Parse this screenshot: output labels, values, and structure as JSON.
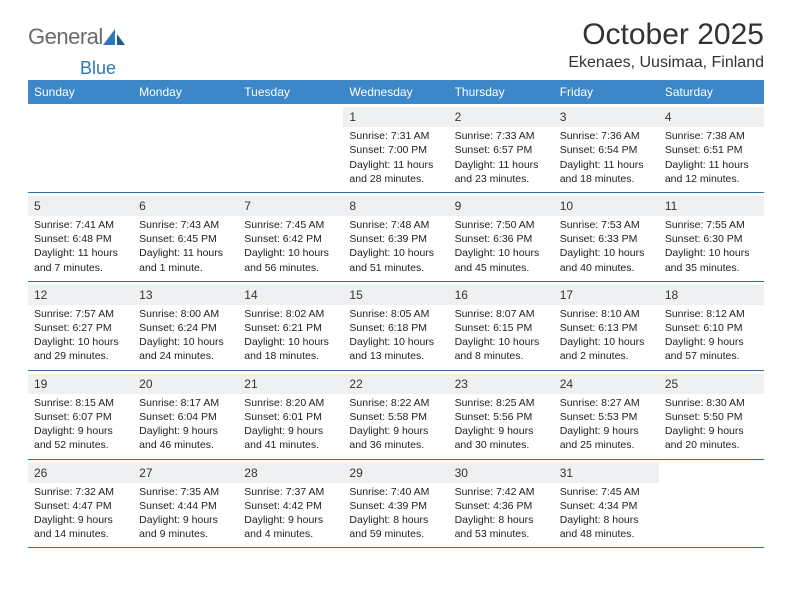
{
  "brand": {
    "name_part1": "General",
    "name_part2": "Blue",
    "accent_color": "#2f77bc"
  },
  "title": "October 2025",
  "location": "Ekenaes, Uusimaa, Finland",
  "colors": {
    "header_bg": "#3b87c8",
    "header_text": "#ffffff",
    "daynum_bg": "#eef0f2",
    "week_border": "#2f6fa8",
    "text": "#222222"
  },
  "weekday_labels": [
    "Sunday",
    "Monday",
    "Tuesday",
    "Wednesday",
    "Thursday",
    "Friday",
    "Saturday"
  ],
  "first_weekday_index": 3,
  "days": [
    {
      "n": "1",
      "sunrise": "7:31 AM",
      "sunset": "7:00 PM",
      "daylight": "11 hours and 28 minutes."
    },
    {
      "n": "2",
      "sunrise": "7:33 AM",
      "sunset": "6:57 PM",
      "daylight": "11 hours and 23 minutes."
    },
    {
      "n": "3",
      "sunrise": "7:36 AM",
      "sunset": "6:54 PM",
      "daylight": "11 hours and 18 minutes."
    },
    {
      "n": "4",
      "sunrise": "7:38 AM",
      "sunset": "6:51 PM",
      "daylight": "11 hours and 12 minutes."
    },
    {
      "n": "5",
      "sunrise": "7:41 AM",
      "sunset": "6:48 PM",
      "daylight": "11 hours and 7 minutes."
    },
    {
      "n": "6",
      "sunrise": "7:43 AM",
      "sunset": "6:45 PM",
      "daylight": "11 hours and 1 minute."
    },
    {
      "n": "7",
      "sunrise": "7:45 AM",
      "sunset": "6:42 PM",
      "daylight": "10 hours and 56 minutes."
    },
    {
      "n": "8",
      "sunrise": "7:48 AM",
      "sunset": "6:39 PM",
      "daylight": "10 hours and 51 minutes."
    },
    {
      "n": "9",
      "sunrise": "7:50 AM",
      "sunset": "6:36 PM",
      "daylight": "10 hours and 45 minutes."
    },
    {
      "n": "10",
      "sunrise": "7:53 AM",
      "sunset": "6:33 PM",
      "daylight": "10 hours and 40 minutes."
    },
    {
      "n": "11",
      "sunrise": "7:55 AM",
      "sunset": "6:30 PM",
      "daylight": "10 hours and 35 minutes."
    },
    {
      "n": "12",
      "sunrise": "7:57 AM",
      "sunset": "6:27 PM",
      "daylight": "10 hours and 29 minutes."
    },
    {
      "n": "13",
      "sunrise": "8:00 AM",
      "sunset": "6:24 PM",
      "daylight": "10 hours and 24 minutes."
    },
    {
      "n": "14",
      "sunrise": "8:02 AM",
      "sunset": "6:21 PM",
      "daylight": "10 hours and 18 minutes."
    },
    {
      "n": "15",
      "sunrise": "8:05 AM",
      "sunset": "6:18 PM",
      "daylight": "10 hours and 13 minutes."
    },
    {
      "n": "16",
      "sunrise": "8:07 AM",
      "sunset": "6:15 PM",
      "daylight": "10 hours and 8 minutes."
    },
    {
      "n": "17",
      "sunrise": "8:10 AM",
      "sunset": "6:13 PM",
      "daylight": "10 hours and 2 minutes."
    },
    {
      "n": "18",
      "sunrise": "8:12 AM",
      "sunset": "6:10 PM",
      "daylight": "9 hours and 57 minutes."
    },
    {
      "n": "19",
      "sunrise": "8:15 AM",
      "sunset": "6:07 PM",
      "daylight": "9 hours and 52 minutes."
    },
    {
      "n": "20",
      "sunrise": "8:17 AM",
      "sunset": "6:04 PM",
      "daylight": "9 hours and 46 minutes."
    },
    {
      "n": "21",
      "sunrise": "8:20 AM",
      "sunset": "6:01 PM",
      "daylight": "9 hours and 41 minutes."
    },
    {
      "n": "22",
      "sunrise": "8:22 AM",
      "sunset": "5:58 PM",
      "daylight": "9 hours and 36 minutes."
    },
    {
      "n": "23",
      "sunrise": "8:25 AM",
      "sunset": "5:56 PM",
      "daylight": "9 hours and 30 minutes."
    },
    {
      "n": "24",
      "sunrise": "8:27 AM",
      "sunset": "5:53 PM",
      "daylight": "9 hours and 25 minutes."
    },
    {
      "n": "25",
      "sunrise": "8:30 AM",
      "sunset": "5:50 PM",
      "daylight": "9 hours and 20 minutes."
    },
    {
      "n": "26",
      "sunrise": "7:32 AM",
      "sunset": "4:47 PM",
      "daylight": "9 hours and 14 minutes."
    },
    {
      "n": "27",
      "sunrise": "7:35 AM",
      "sunset": "4:44 PM",
      "daylight": "9 hours and 9 minutes."
    },
    {
      "n": "28",
      "sunrise": "7:37 AM",
      "sunset": "4:42 PM",
      "daylight": "9 hours and 4 minutes."
    },
    {
      "n": "29",
      "sunrise": "7:40 AM",
      "sunset": "4:39 PM",
      "daylight": "8 hours and 59 minutes."
    },
    {
      "n": "30",
      "sunrise": "7:42 AM",
      "sunset": "4:36 PM",
      "daylight": "8 hours and 53 minutes."
    },
    {
      "n": "31",
      "sunrise": "7:45 AM",
      "sunset": "4:34 PM",
      "daylight": "8 hours and 48 minutes."
    }
  ],
  "labels": {
    "sunrise_prefix": "Sunrise: ",
    "sunset_prefix": "Sunset: ",
    "daylight_prefix": "Daylight: "
  }
}
